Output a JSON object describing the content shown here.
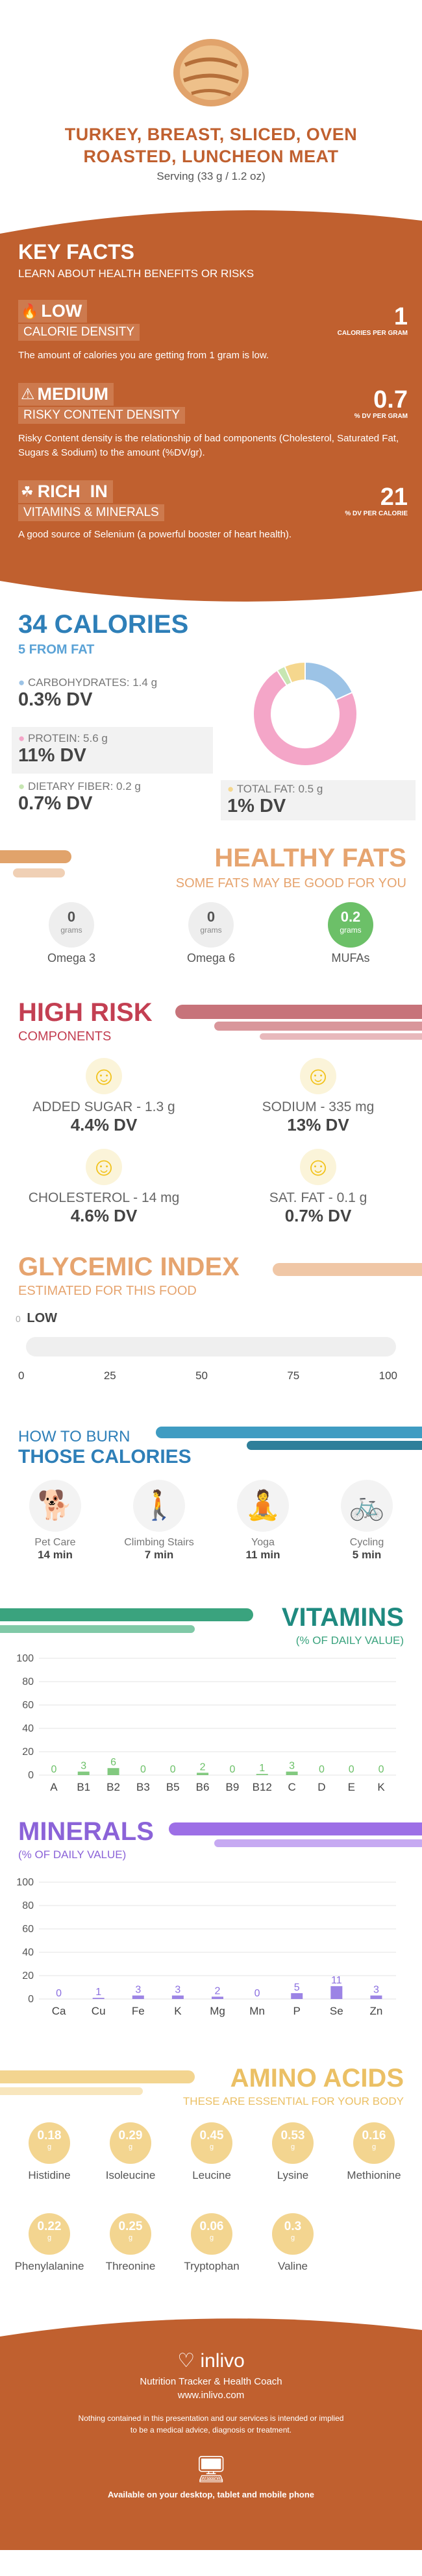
{
  "header": {
    "title_line1": "TURKEY, BREAST, SLICED, OVEN",
    "title_line2": "ROASTED, LUNCHEON MEAT",
    "serving": "Serving (33 g / 1.2 oz)"
  },
  "key_facts": {
    "title": "KEY FACTS",
    "subtitle": "LEARN ABOUT HEALTH BENEFITS OR RISKS",
    "items": [
      {
        "level": "LOW",
        "label": "CALORIE DENSITY",
        "value": "1",
        "unit": "CALORIES PER GRAM",
        "desc": "The amount of calories you are getting from 1 gram is low.",
        "icon": "flame-icon"
      },
      {
        "level": "MEDIUM",
        "label": "RISKY CONTENT DENSITY",
        "value": "0.7",
        "unit": "% DV PER GRAM",
        "desc": "Risky Content density is the relationship of bad components (Cholesterol, Saturated Fat, Sugars & Sodium) to the amount (%DV/gr).",
        "icon": "warning-icon"
      },
      {
        "level": "RICH  IN",
        "label": "VITAMINS & MINERALS",
        "value": "21",
        "unit": "% DV PER CALORIE",
        "desc": "A good source of Selenium (a powerful booster of heart health).",
        "icon": "leaf-icon"
      }
    ]
  },
  "calories": {
    "title": "34 CALORIES",
    "subtitle": "5 FROM FAT",
    "carbs_label": "CARBOHYDRATES: 1.4 g",
    "carbs_dv": "0.3% DV",
    "protein_label": "PROTEIN: 5.6 g",
    "protein_dv": "11% DV",
    "fiber_label": "DIETARY FIBER: 0.2 g",
    "fiber_dv": "0.7% DV",
    "fat_label": "TOTAL FAT: 0.5 g",
    "fat_dv": "1% DV",
    "colors": {
      "carbs": "#9cc3e6",
      "protein": "#f4a6c8",
      "fiber": "#c7e6b2",
      "fat": "#f5d78e"
    },
    "donut": [
      {
        "name": "CARBOHYDRATES",
        "value": 1.4,
        "color": "#9cc3e6"
      },
      {
        "name": "PROTEIN",
        "value": 5.6,
        "color": "#f4a6c8"
      },
      {
        "name": "DIETARY FIBER",
        "value": 0.2,
        "color": "#c7e6b2"
      },
      {
        "name": "TOTAL FAT",
        "value": 0.5,
        "color": "#f5d78e"
      }
    ]
  },
  "healthy_fats": {
    "title": "HEALTHY FATS",
    "subtitle": "SOME FATS MAY BE GOOD FOR YOU",
    "items": [
      {
        "value": "0",
        "unit": "grams",
        "name": "Omega 3"
      },
      {
        "value": "0",
        "unit": "grams",
        "name": "Omega 6"
      },
      {
        "value": "0.2",
        "unit": "grams",
        "name": "MUFAs"
      }
    ]
  },
  "high_risk": {
    "title": "HIGH RISK",
    "subtitle": "COMPONENTS",
    "items": [
      {
        "label": "ADDED SUGAR - 1.3 g",
        "dv": "4.4% DV"
      },
      {
        "label": "SODIUM - 335 mg",
        "dv": "13% DV"
      },
      {
        "label": "CHOLESTEROL - 14 mg",
        "dv": "4.6% DV"
      },
      {
        "label": "SAT. FAT - 0.1 g",
        "dv": "0.7% DV"
      }
    ]
  },
  "glycemic": {
    "title": "GLYCEMIC INDEX",
    "subtitle": "ESTIMATED FOR THIS FOOD",
    "value_label": "0",
    "level": "LOW",
    "value": 0,
    "ticks": [
      "0",
      "25",
      "50",
      "75",
      "100"
    ]
  },
  "burn": {
    "title_line1": "HOW TO BURN",
    "title_line2": "THOSE CALORIES",
    "items": [
      {
        "name": "Pet Care",
        "time": "14 min"
      },
      {
        "name": "Climbing Stairs",
        "time": "7 min"
      },
      {
        "name": "Yoga",
        "time": "11 min"
      },
      {
        "name": "Cycling",
        "time": "5 min"
      }
    ]
  },
  "vitamins": {
    "title": "VITAMINS",
    "subtitle": "(% OF DAILY VALUE)",
    "chart_data": {
      "type": "bar",
      "categories": [
        "A",
        "B1",
        "B2",
        "B3",
        "B5",
        "B6",
        "B9",
        "B12",
        "C",
        "D",
        "E",
        "K"
      ],
      "values": [
        0,
        3,
        6,
        0,
        0,
        2,
        0,
        1,
        3,
        0,
        0,
        0
      ],
      "yticks": [
        "0",
        "20",
        "40",
        "60",
        "80",
        "100"
      ],
      "ylim": [
        0,
        100
      ],
      "color": "#6cc068"
    }
  },
  "minerals": {
    "title": "MINERALS",
    "subtitle": "(% OF DAILY VALUE)",
    "chart_data": {
      "type": "bar",
      "categories": [
        "Ca",
        "Cu",
        "Fe",
        "K",
        "Mg",
        "Mn",
        "P",
        "Se",
        "Zn"
      ],
      "values": [
        0,
        1,
        3,
        3,
        2,
        0,
        5,
        11,
        3
      ],
      "yticks": [
        "0",
        "20",
        "40",
        "60",
        "80",
        "100"
      ],
      "ylim": [
        0,
        100
      ],
      "color": "#8b6fe0"
    }
  },
  "amino": {
    "title": "AMINO ACIDS",
    "subtitle": "THESE ARE ESSENTIAL FOR YOUR BODY",
    "unit": "g",
    "items": [
      {
        "value": "0.18",
        "name": "Histidine"
      },
      {
        "value": "0.29",
        "name": "Isoleucine"
      },
      {
        "value": "0.45",
        "name": "Leucine"
      },
      {
        "value": "0.53",
        "name": "Lysine"
      },
      {
        "value": "0.16",
        "name": "Methionine"
      },
      {
        "value": "0.22",
        "name": "Phenylalanine"
      },
      {
        "value": "0.25",
        "name": "Threonine"
      },
      {
        "value": "0.06",
        "name": "Tryptophan"
      },
      {
        "value": "0.3",
        "name": "Valine"
      }
    ]
  },
  "footer": {
    "brand": "inlivo",
    "tagline": "Nutrition Tracker & Health Coach",
    "url": "www.inlivo.com",
    "disclaimer1": "Nothing contained in this presentation and our services is intended or implied",
    "disclaimer2": "to be a medical advice, diagnosis or treatment.",
    "available": "Available on your desktop, tablet and mobile phone"
  }
}
